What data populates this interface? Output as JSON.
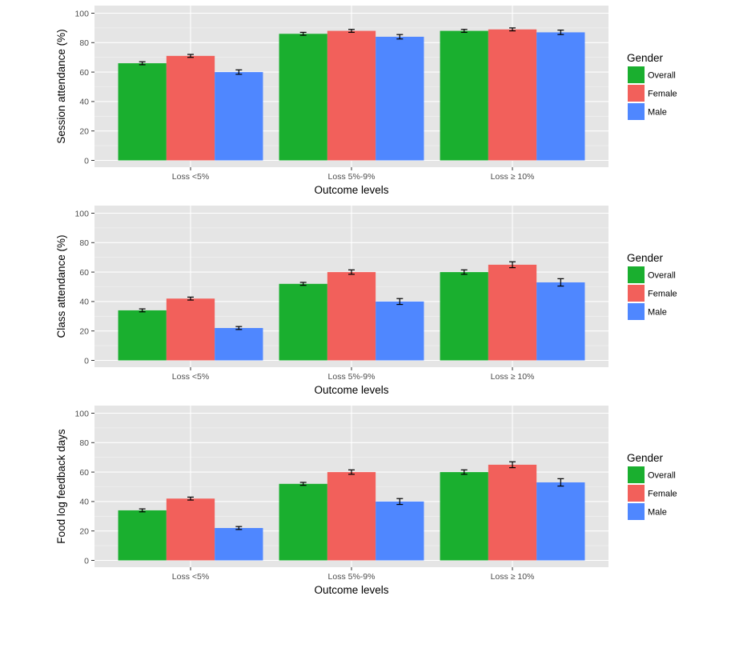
{
  "chart_data": [
    {
      "type": "bar",
      "title": "",
      "xlabel": "Outcome levels",
      "ylabel": "Session attendance (%)",
      "ylim": [
        0,
        100
      ],
      "yticks": [
        0,
        20,
        40,
        60,
        80,
        100
      ],
      "grid": true,
      "categories": [
        "Loss <5%",
        "Loss 5%-9%",
        "Loss ≥ 10%"
      ],
      "legend": {
        "title": "Gender",
        "position": "right"
      },
      "series": [
        {
          "name": "Overall",
          "color": "#1AAF2F",
          "values": [
            66,
            86,
            88
          ],
          "errors": [
            1,
            1,
            1
          ]
        },
        {
          "name": "Female",
          "color": "#F2605B",
          "values": [
            71,
            88,
            89
          ],
          "errors": [
            1,
            1,
            1
          ]
        },
        {
          "name": "Male",
          "color": "#4F87FF",
          "values": [
            60,
            84,
            87
          ],
          "errors": [
            1.5,
            1.5,
            1.5
          ]
        }
      ]
    },
    {
      "type": "bar",
      "title": "",
      "xlabel": "Outcome levels",
      "ylabel": "Class attendance (%)",
      "ylim": [
        0,
        100
      ],
      "yticks": [
        0,
        20,
        40,
        60,
        80,
        100
      ],
      "grid": true,
      "categories": [
        "Loss <5%",
        "Loss 5%-9%",
        "Loss ≥ 10%"
      ],
      "legend": {
        "title": "Gender",
        "position": "right"
      },
      "series": [
        {
          "name": "Overall",
          "color": "#1AAF2F",
          "values": [
            34,
            52,
            60
          ],
          "errors": [
            1,
            1,
            1.5
          ]
        },
        {
          "name": "Female",
          "color": "#F2605B",
          "values": [
            42,
            60,
            65
          ],
          "errors": [
            1,
            1.5,
            2
          ]
        },
        {
          "name": "Male",
          "color": "#4F87FF",
          "values": [
            22,
            40,
            53
          ],
          "errors": [
            1,
            2,
            2.5
          ]
        }
      ]
    },
    {
      "type": "bar",
      "title": "",
      "xlabel": "Outcome levels",
      "ylabel": "Food log feedback days",
      "ylim": [
        0,
        100
      ],
      "yticks": [
        0,
        20,
        40,
        60,
        80,
        100
      ],
      "grid": true,
      "categories": [
        "Loss <5%",
        "Loss 5%-9%",
        "Loss ≥ 10%"
      ],
      "legend": {
        "title": "Gender",
        "position": "right"
      },
      "series": [
        {
          "name": "Overall",
          "color": "#1AAF2F",
          "values": [
            34,
            52,
            60
          ],
          "errors": [
            1,
            1,
            1.5
          ]
        },
        {
          "name": "Female",
          "color": "#F2605B",
          "values": [
            42,
            60,
            65
          ],
          "errors": [
            1,
            1.5,
            2
          ]
        },
        {
          "name": "Male",
          "color": "#4F87FF",
          "values": [
            22,
            40,
            53
          ],
          "errors": [
            1,
            2,
            2.5
          ]
        }
      ]
    }
  ]
}
